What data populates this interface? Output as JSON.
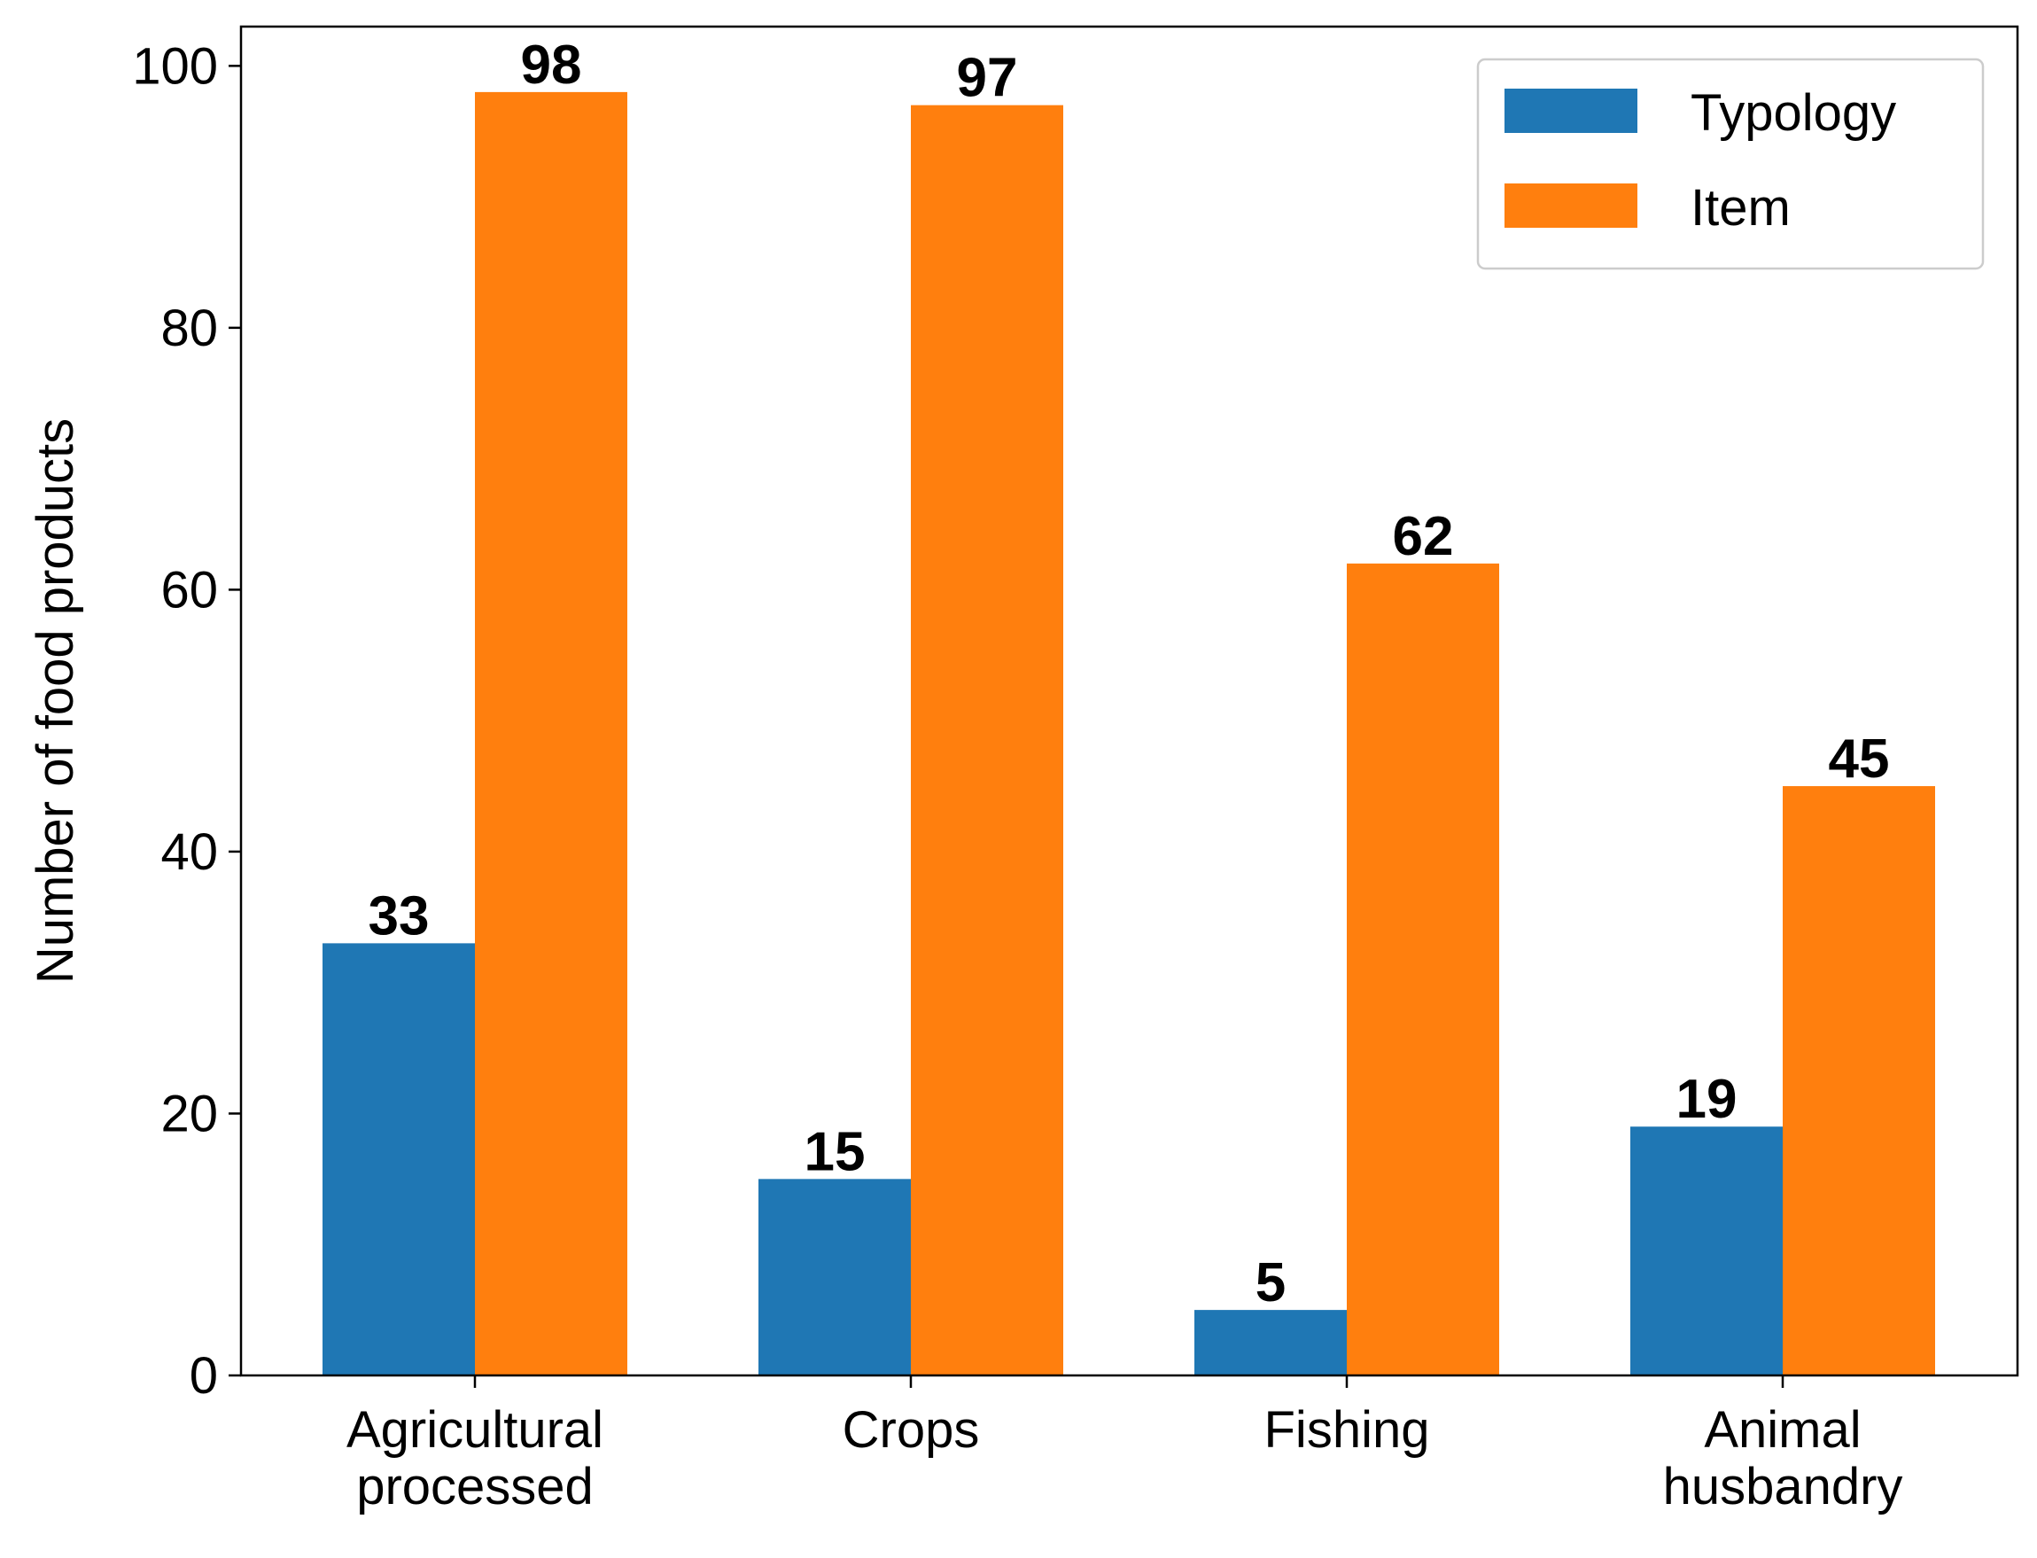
{
  "chart_data": {
    "type": "bar",
    "categories": [
      [
        "Agricultural",
        "processed"
      ],
      [
        "Crops"
      ],
      [
        "Fishing"
      ],
      [
        "Animal",
        "husbandry"
      ]
    ],
    "series": [
      {
        "name": "Typology",
        "values": [
          33,
          15,
          5,
          19
        ],
        "color": "#1f77b4"
      },
      {
        "name": "Item",
        "values": [
          98,
          97,
          62,
          45
        ],
        "color": "#ff7f0e"
      }
    ],
    "value_labels": {
      "Typology": [
        "33",
        "15",
        "5",
        "19"
      ],
      "Item": [
        "98",
        "97",
        "62",
        "45"
      ]
    },
    "title": "",
    "xlabel": "",
    "ylabel": "Number of food products",
    "ylim": [
      0,
      103
    ],
    "yticks": [
      "0",
      "20",
      "40",
      "60",
      "80",
      "100"
    ],
    "grid": false,
    "legend": {
      "placement": "top-right",
      "entries": [
        "Typology",
        "Item"
      ]
    }
  }
}
